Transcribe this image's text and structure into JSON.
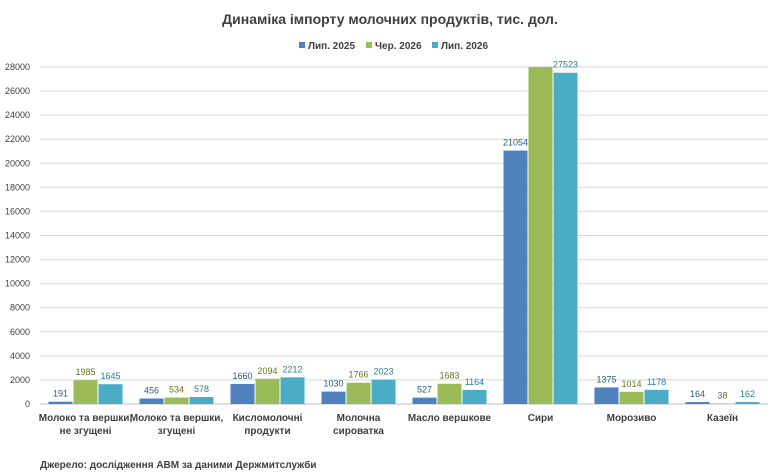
{
  "chart_data": {
    "type": "bar",
    "title": "Динаміка імпорту молочних продуктів, тис. дол.",
    "xlabel": "",
    "ylabel": "",
    "ylim": [
      0,
      28000
    ],
    "yticks": [
      0,
      2000,
      4000,
      6000,
      8000,
      10000,
      12000,
      14000,
      16000,
      18000,
      20000,
      22000,
      24000,
      26000,
      28000
    ],
    "grid": true,
    "legend_position": "top",
    "categories": [
      [
        "Молоко та вершки,",
        "не згущені"
      ],
      [
        "Молоко та вершки,",
        "згущені"
      ],
      [
        "Кисломолочні",
        "продукти"
      ],
      [
        "Молочна",
        "сироватка"
      ],
      [
        "Масло вершкове"
      ],
      [
        "Сири"
      ],
      [
        "Морозиво"
      ],
      [
        "Казеїн"
      ]
    ],
    "series": [
      {
        "name": "Лип. 2025",
        "color": "#4F81BD",
        "label_color": "#2E5A8C",
        "values": [
          191,
          456,
          1660,
          1030,
          527,
          21054,
          1375,
          164
        ],
        "labels": [
          "191",
          "456",
          "1660",
          "1030",
          "527",
          "21054",
          "1375",
          "164"
        ]
      },
      {
        "name": "Чер. 2026",
        "color": "#9BBB59",
        "label_color": "#5E7A1E",
        "values": [
          1985,
          534,
          2094,
          1766,
          1683,
          28100,
          1014,
          38
        ],
        "labels": [
          "1985",
          "534",
          "2094",
          "1766",
          "1683",
          "",
          "1014",
          "38"
        ]
      },
      {
        "name": "Лип. 2026",
        "color": "#4BACC6",
        "label_color": "#2A7F99",
        "values": [
          1645,
          578,
          2212,
          2023,
          1164,
          27523,
          1178,
          162
        ],
        "labels": [
          "1645",
          "578",
          "2212",
          "2023",
          "1164",
          "27523",
          "1178",
          "162"
        ]
      }
    ]
  },
  "source_note": "Джерело: дослідження  АВМ  за даними  Держмитслужби",
  "colors": {
    "gridline": "#D9D9D9",
    "axis": "#BFBFBF",
    "text": "#404040"
  }
}
